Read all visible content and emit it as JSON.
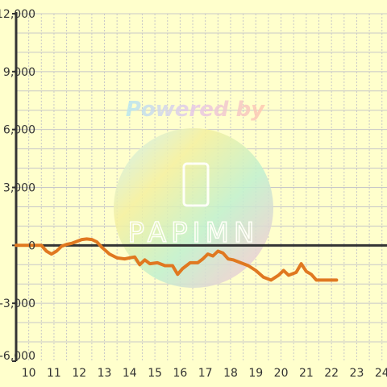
{
  "chart_data": {
    "type": "line",
    "xlim": [
      9.5,
      24.2
    ],
    "ylim": [
      -6000,
      12000
    ],
    "x_ticks": [
      10,
      11,
      12,
      13,
      14,
      15,
      16,
      17,
      18,
      19,
      20,
      21,
      22,
      23,
      24
    ],
    "x_tick_labels": [
      "10",
      "11",
      "12",
      "13",
      "14",
      "15",
      "16",
      "17",
      "18",
      "19",
      "20",
      "21",
      "22",
      "23",
      "24"
    ],
    "y_ticks": [
      -6000,
      -3000,
      0,
      3000,
      6000,
      9000,
      12000
    ],
    "y_tick_labels": [
      "-6,000",
      "-3,000",
      "0",
      "3,000",
      "6,000",
      "9,000",
      "12,000"
    ],
    "grid": true,
    "series": [
      {
        "color": "#e07820",
        "points": [
          [
            9.5,
            0
          ],
          [
            10.0,
            0
          ],
          [
            10.5,
            0
          ],
          [
            10.7,
            -300
          ],
          [
            10.9,
            -450
          ],
          [
            11.1,
            -300
          ],
          [
            11.3,
            -50
          ],
          [
            11.5,
            50
          ],
          [
            11.7,
            100
          ],
          [
            11.9,
            200
          ],
          [
            12.1,
            300
          ],
          [
            12.3,
            330
          ],
          [
            12.5,
            300
          ],
          [
            12.7,
            180
          ],
          [
            12.9,
            -100
          ],
          [
            13.2,
            -450
          ],
          [
            13.5,
            -650
          ],
          [
            13.8,
            -700
          ],
          [
            14.0,
            -650
          ],
          [
            14.2,
            -600
          ],
          [
            14.4,
            -1000
          ],
          [
            14.6,
            -750
          ],
          [
            14.8,
            -950
          ],
          [
            15.1,
            -900
          ],
          [
            15.4,
            -1050
          ],
          [
            15.7,
            -1050
          ],
          [
            15.9,
            -1500
          ],
          [
            16.1,
            -1200
          ],
          [
            16.4,
            -900
          ],
          [
            16.7,
            -900
          ],
          [
            16.9,
            -700
          ],
          [
            17.1,
            -450
          ],
          [
            17.3,
            -550
          ],
          [
            17.5,
            -300
          ],
          [
            17.7,
            -400
          ],
          [
            17.9,
            -700
          ],
          [
            18.1,
            -750
          ],
          [
            18.4,
            -900
          ],
          [
            18.7,
            -1050
          ],
          [
            19.0,
            -1300
          ],
          [
            19.3,
            -1650
          ],
          [
            19.6,
            -1800
          ],
          [
            19.9,
            -1550
          ],
          [
            20.1,
            -1300
          ],
          [
            20.3,
            -1550
          ],
          [
            20.6,
            -1400
          ],
          [
            20.8,
            -950
          ],
          [
            21.0,
            -1350
          ],
          [
            21.2,
            -1500
          ],
          [
            21.4,
            -1800
          ],
          [
            22.2,
            -1800
          ]
        ]
      }
    ]
  },
  "watermark": {
    "caption": "Powered by",
    "brand": "PAPIMN"
  }
}
